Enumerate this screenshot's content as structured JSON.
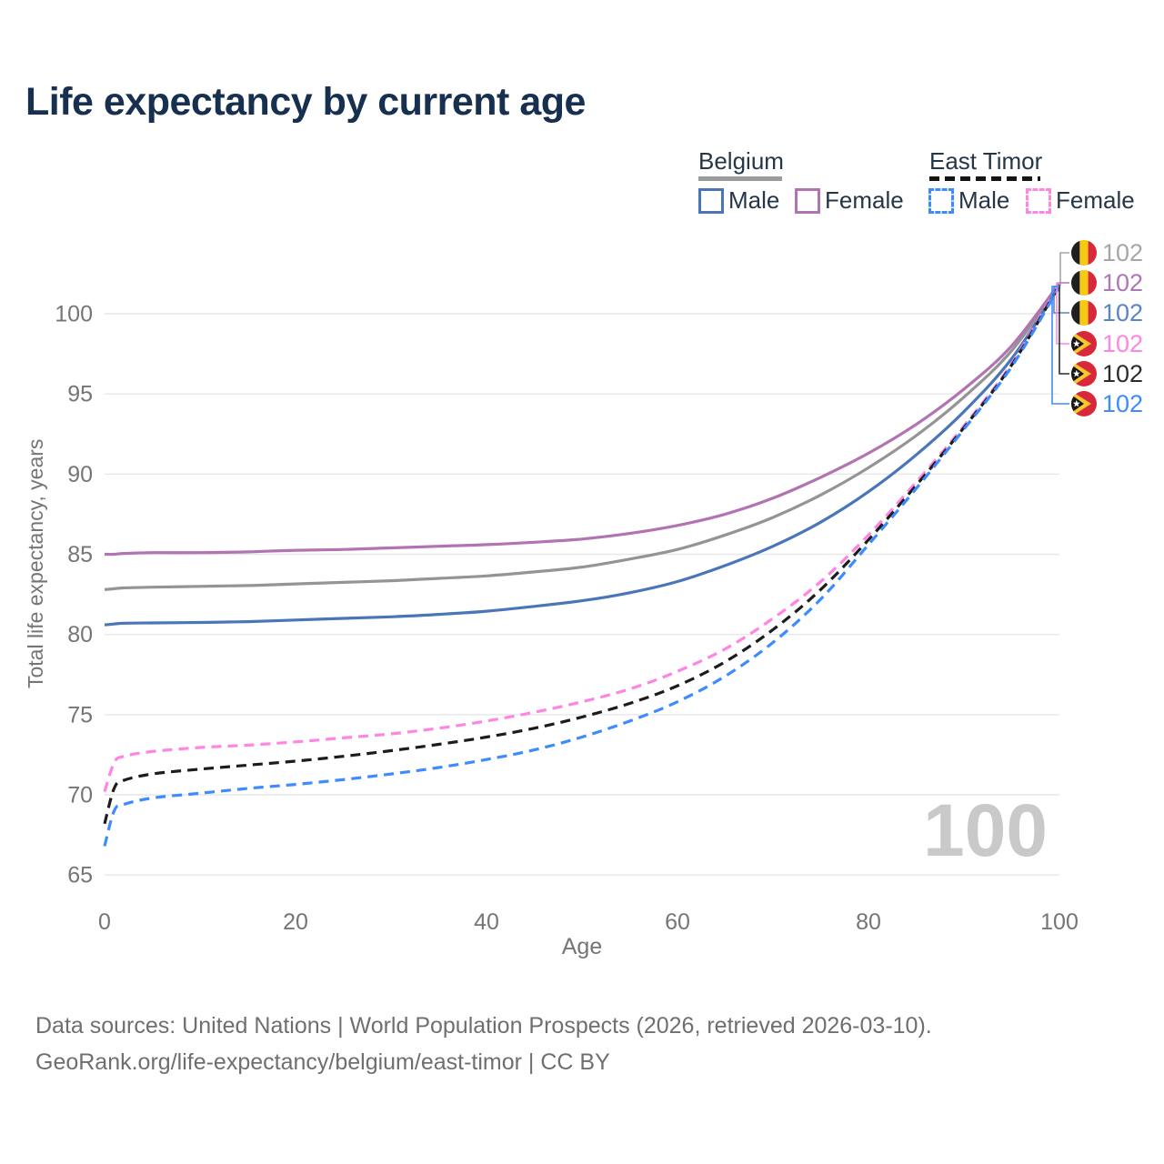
{
  "title": "Life expectancy by current age",
  "legend": {
    "groups": [
      {
        "label": "Belgium",
        "items": [
          {
            "label": "Male"
          },
          {
            "label": "Female"
          }
        ]
      },
      {
        "label": "East Timor",
        "items": [
          {
            "label": "Male"
          },
          {
            "label": "Female"
          }
        ]
      }
    ]
  },
  "watermark": "100",
  "footer": {
    "line1": "Data sources: United Nations | World Population Prospects (2026, retrieved 2026-03-10).",
    "line2": "GeoRank.org/life-expectancy/belgium/east-timor | CC BY"
  },
  "chart_data": {
    "type": "line",
    "title": "Life expectancy by current age",
    "xlabel": "Age",
    "ylabel": "Total life expectancy, years",
    "xlim": [
      0,
      100
    ],
    "ylim": [
      65,
      102
    ],
    "xticks": [
      0,
      20,
      40,
      60,
      80,
      100
    ],
    "yticks": [
      65,
      70,
      75,
      80,
      85,
      90,
      95,
      100
    ],
    "grid": "horizontal",
    "legend_position": "top-right",
    "ages": [
      0,
      1,
      2,
      5,
      10,
      15,
      20,
      25,
      30,
      35,
      40,
      45,
      50,
      55,
      60,
      65,
      70,
      75,
      80,
      85,
      90,
      95,
      100
    ],
    "series": [
      {
        "name": "Belgium Both sexes",
        "country": "Belgium",
        "sex": "both",
        "color": "#949494",
        "dash": "solid",
        "label_color": "#a6a6a6",
        "flag": "be",
        "end_label": "102",
        "connector_x": 1166,
        "label_row": 0,
        "values": [
          82.8,
          82.85,
          82.9,
          82.95,
          83.0,
          83.05,
          83.15,
          83.25,
          83.35,
          83.5,
          83.65,
          83.9,
          84.2,
          84.7,
          85.3,
          86.2,
          87.3,
          88.7,
          90.4,
          92.4,
          94.8,
          97.7,
          101.8
        ]
      },
      {
        "name": "Belgium Female",
        "country": "Belgium",
        "sex": "female",
        "color": "#b273b2",
        "dash": "solid",
        "label_color": "#ad77b5",
        "flag": "be",
        "end_label": "102",
        "connector_x": 1163,
        "label_row": 1,
        "values": [
          85.0,
          85.0,
          85.05,
          85.1,
          85.1,
          85.15,
          85.25,
          85.3,
          85.4,
          85.5,
          85.6,
          85.75,
          85.95,
          86.3,
          86.8,
          87.5,
          88.5,
          89.8,
          91.3,
          93.1,
          95.3,
          98.0,
          101.9
        ]
      },
      {
        "name": "Belgium Male",
        "country": "Belgium",
        "sex": "male",
        "color": "#4a76b9",
        "dash": "solid",
        "label_color": "#5b84c6",
        "flag": "be",
        "end_label": "102",
        "connector_x": 1159,
        "label_row": 2,
        "values": [
          80.6,
          80.65,
          80.7,
          80.72,
          80.75,
          80.8,
          80.9,
          81.0,
          81.1,
          81.25,
          81.45,
          81.75,
          82.1,
          82.6,
          83.3,
          84.3,
          85.5,
          87.0,
          88.9,
          91.2,
          93.9,
          97.2,
          101.7
        ]
      },
      {
        "name": "East Timor Female",
        "country": "East Timor",
        "sex": "female",
        "color": "#ff85e2",
        "dash": "dashed",
        "label_color": "#ff85e2",
        "flag": "tl",
        "end_label": "102",
        "connector_x": 1162,
        "label_row": 3,
        "values": [
          70.2,
          72.0,
          72.4,
          72.7,
          72.95,
          73.1,
          73.3,
          73.55,
          73.8,
          74.15,
          74.6,
          75.15,
          75.8,
          76.6,
          77.7,
          79.1,
          81.0,
          83.3,
          86.2,
          89.5,
          93.0,
          96.9,
          101.9
        ]
      },
      {
        "name": "East Timor Both sexes",
        "country": "East Timor",
        "sex": "both",
        "color": "#1c1c1c",
        "dash": "dashed",
        "label_color": "#2b2b2b",
        "flag": "tl",
        "end_label": "102",
        "connector_x": 1165,
        "label_row": 4,
        "values": [
          68.2,
          70.4,
          70.9,
          71.3,
          71.6,
          71.85,
          72.1,
          72.4,
          72.75,
          73.15,
          73.6,
          74.15,
          74.85,
          75.7,
          76.8,
          78.3,
          80.3,
          82.8,
          85.9,
          89.3,
          92.9,
          96.8,
          101.8
        ]
      },
      {
        "name": "East Timor Male",
        "country": "East Timor",
        "sex": "male",
        "color": "#3d8bff",
        "dash": "dashed",
        "label_color": "#3d8bff",
        "flag": "tl",
        "end_label": "102",
        "connector_x": 1157,
        "label_row": 5,
        "values": [
          66.8,
          69.0,
          69.4,
          69.8,
          70.1,
          70.4,
          70.65,
          70.95,
          71.3,
          71.7,
          72.2,
          72.8,
          73.6,
          74.6,
          75.8,
          77.4,
          79.5,
          82.2,
          85.6,
          89.1,
          92.8,
          96.7,
          101.7
        ]
      }
    ]
  }
}
